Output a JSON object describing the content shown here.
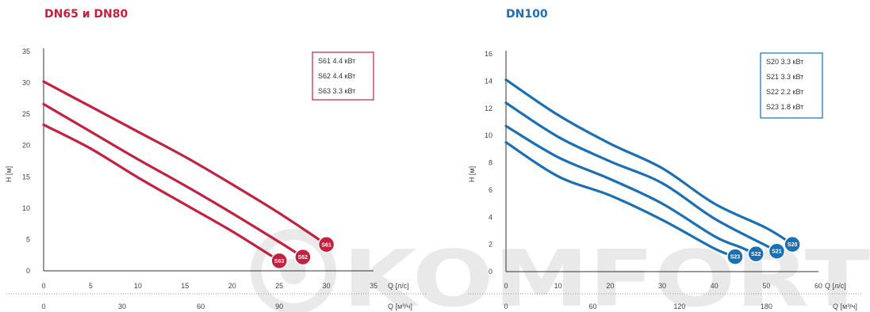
{
  "watermark": "KOMFORT",
  "chart_data": [
    {
      "type": "line",
      "title": "DN65 и DN80",
      "color": "#c4203f",
      "ylabel": "H [м]",
      "xlabel": "Q [л/с]",
      "x2label": "Q [м³/ч]",
      "xlim": [
        0,
        35
      ],
      "ylim": [
        0,
        35
      ],
      "xticks": [
        "0",
        "5",
        "10",
        "15",
        "20",
        "25",
        "30",
        "35"
      ],
      "yticks": [
        "0",
        "5",
        "10",
        "15",
        "20",
        "25",
        "30",
        "35"
      ],
      "x2ticks": [
        {
          "value": 0,
          "label": "0"
        },
        {
          "value": 8.33,
          "label": "30"
        },
        {
          "value": 16.67,
          "label": "60"
        },
        {
          "value": 25,
          "label": "90"
        }
      ],
      "legend": [
        "S61 4.4 кВт",
        "S62 4.4 кВт",
        "S63 3.3 кВт"
      ],
      "series": [
        {
          "name": "S61",
          "x": [
            0,
            5,
            10,
            15,
            20,
            25,
            30
          ],
          "y": [
            30.2,
            26.2,
            22.2,
            18.2,
            13.8,
            9.2,
            4.2
          ]
        },
        {
          "name": "S62",
          "x": [
            0,
            5,
            10,
            15,
            20,
            25,
            27.5
          ],
          "y": [
            26.6,
            22.2,
            17.8,
            13.6,
            9.2,
            4.6,
            2.2
          ]
        },
        {
          "name": "S63",
          "x": [
            0,
            5,
            10,
            15,
            20,
            25
          ],
          "y": [
            23.3,
            19.5,
            14.9,
            10.6,
            6.3,
            1.6
          ]
        }
      ]
    },
    {
      "type": "line",
      "title": "DN100",
      "color": "#1a6fb5",
      "ylabel": "H [м]",
      "xlabel": "Q [л/с]",
      "x2label": "Q [м³/ч]",
      "xlim": [
        0,
        60
      ],
      "ylim": [
        0,
        16
      ],
      "xticks": [
        "0",
        "10",
        "20",
        "30",
        "40",
        "50",
        "60"
      ],
      "yticks": [
        "0",
        "2",
        "4",
        "6",
        "8",
        "10",
        "12",
        "14",
        "16"
      ],
      "x2ticks": [
        {
          "value": 0,
          "label": "0"
        },
        {
          "value": 16.67,
          "label": "60"
        },
        {
          "value": 33.33,
          "label": "120"
        },
        {
          "value": 50,
          "label": "180"
        }
      ],
      "legend": [
        "S20 3.3 кВт",
        "S21 3.3 кВт",
        "S22 2.2 кВт",
        "S23 1.8 кВт"
      ],
      "series": [
        {
          "name": "S20",
          "x": [
            0,
            10,
            20,
            30,
            40,
            50,
            55
          ],
          "y": [
            14.1,
            11.5,
            9.4,
            7.6,
            5.0,
            3.2,
            2.0
          ]
        },
        {
          "name": "S21",
          "x": [
            0,
            10,
            20,
            30,
            40,
            50,
            52
          ],
          "y": [
            12.4,
            9.9,
            8.1,
            6.5,
            3.9,
            1.9,
            1.5
          ]
        },
        {
          "name": "S22",
          "x": [
            0,
            10,
            20,
            30,
            40,
            45,
            48
          ],
          "y": [
            10.7,
            8.4,
            6.8,
            5.0,
            2.6,
            1.8,
            1.3
          ]
        },
        {
          "name": "S23",
          "x": [
            0,
            10,
            20,
            30,
            40,
            44
          ],
          "y": [
            9.5,
            7.0,
            5.6,
            3.8,
            1.7,
            1.1
          ]
        }
      ]
    }
  ]
}
